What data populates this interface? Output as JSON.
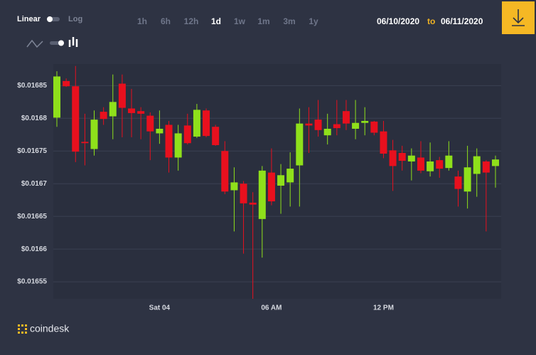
{
  "controls": {
    "scale_linear": "Linear",
    "scale_log": "Log",
    "ranges": [
      "1h",
      "6h",
      "12h",
      "1d",
      "1w",
      "1m",
      "3m",
      "1y"
    ],
    "active_range": "1d",
    "date_from": "06/10/2020",
    "date_sep": "to",
    "date_to": "06/11/2020"
  },
  "brand": "coindesk",
  "chart_data": {
    "type": "candlestick",
    "categories": [
      null,
      null,
      null,
      null,
      null,
      null,
      null,
      null,
      null,
      null,
      null,
      "Sat 04",
      null,
      null,
      null,
      null,
      null,
      null,
      null,
      null,
      null,
      null,
      null,
      "06 AM",
      null,
      null,
      null,
      null,
      null,
      null,
      null,
      null,
      null,
      null,
      null,
      "12 PM",
      null,
      null,
      null,
      null,
      null,
      null,
      null,
      null,
      null,
      null,
      null,
      null
    ],
    "open": [
      0.016801,
      0.016857,
      0.016849,
      0.016764,
      0.016753,
      0.01681,
      0.016803,
      0.016853,
      0.016815,
      0.016811,
      0.016804,
      0.016777,
      0.01679,
      0.01674,
      0.016789,
      0.016772,
      0.016812,
      0.016787,
      0.01675,
      0.01669,
      0.0167,
      0.016671,
      0.016646,
      0.016717,
      0.016697,
      0.016702,
      0.016728,
      0.016792,
      0.016798,
      0.016774,
      0.016791,
      0.016811,
      0.016784,
      0.016793,
      0.016795,
      0.01678,
      0.016751,
      0.016747,
      0.016734,
      0.01674,
      0.016719,
      0.016736,
      0.016724,
      0.016711,
      0.016688,
      0.016715,
      0.016734,
      0.016727
    ],
    "high": [
      0.016872,
      0.016861,
      0.01688,
      0.016807,
      0.016812,
      0.016817,
      0.016867,
      0.016867,
      0.016845,
      0.016817,
      0.016809,
      0.016812,
      0.016796,
      0.01679,
      0.016807,
      0.016822,
      0.016815,
      0.01679,
      0.016765,
      0.016725,
      0.016704,
      0.016687,
      0.016727,
      0.016754,
      0.01673,
      0.016748,
      0.016815,
      0.016817,
      0.016828,
      0.016807,
      0.016828,
      0.016828,
      0.016828,
      0.016817,
      0.016796,
      0.016796,
      0.016767,
      0.016758,
      0.016754,
      0.016765,
      0.016763,
      0.016741,
      0.016765,
      0.01672,
      0.016758,
      0.016754,
      0.016736,
      0.016743
    ],
    "low": [
      0.016787,
      0.016848,
      0.016733,
      0.016728,
      0.016743,
      0.01679,
      0.016768,
      0.016771,
      0.016771,
      0.016768,
      0.016736,
      0.016761,
      0.016717,
      0.01672,
      0.01676,
      0.01677,
      0.016771,
      0.016758,
      0.016684,
      0.016627,
      0.016593,
      0.016524,
      0.016587,
      0.016667,
      0.016654,
      0.016665,
      0.016665,
      0.016747,
      0.016772,
      0.01676,
      0.016774,
      0.016782,
      0.016768,
      0.016774,
      0.016774,
      0.016739,
      0.016689,
      0.01672,
      0.016705,
      0.016716,
      0.016711,
      0.016709,
      0.01672,
      0.016665,
      0.016662,
      0.01668,
      0.016627,
      0.016694
    ],
    "close": [
      0.016864,
      0.016849,
      0.016749,
      0.016762,
      0.016798,
      0.016799,
      0.016825,
      0.016816,
      0.016808,
      0.016807,
      0.01678,
      0.016784,
      0.01674,
      0.016777,
      0.016762,
      0.016813,
      0.016773,
      0.016759,
      0.016688,
      0.016702,
      0.01667,
      0.016668,
      0.01672,
      0.016673,
      0.016713,
      0.016723,
      0.016792,
      0.016789,
      0.016782,
      0.016784,
      0.016785,
      0.016792,
      0.016793,
      0.016796,
      0.016778,
      0.016746,
      0.016727,
      0.016735,
      0.016743,
      0.01672,
      0.016734,
      0.016723,
      0.016743,
      0.016692,
      0.016725,
      0.016742,
      0.016717,
      0.016737
    ],
    "up_color": "#8fe01b",
    "down_color": "#e8101e",
    "grid": true,
    "ylim": [
      0.016524,
      0.016883
    ],
    "yticks": [
      {
        "value": 0.01655,
        "label": "$0.01655"
      },
      {
        "value": 0.0166,
        "label": "$0.0166"
      },
      {
        "value": 0.01665,
        "label": "$0.01665"
      },
      {
        "value": 0.0167,
        "label": "$0.0167"
      },
      {
        "value": 0.01675,
        "label": "$0.01675"
      },
      {
        "value": 0.0168,
        "label": "$0.0168"
      },
      {
        "value": 0.01685,
        "label": "$0.01685"
      }
    ]
  }
}
